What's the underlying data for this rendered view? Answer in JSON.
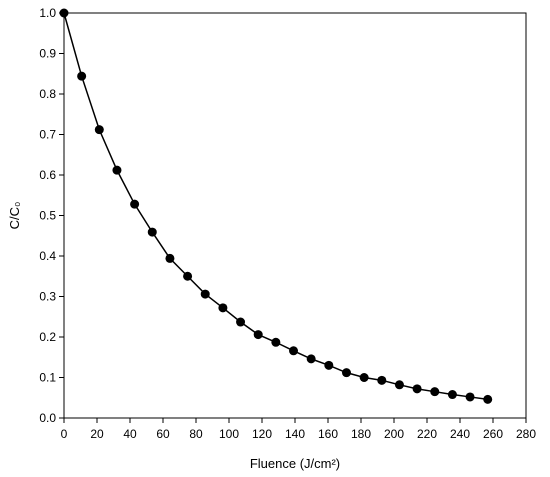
{
  "chart_data": {
    "type": "line",
    "xlabel": "Fluence (J/cm²)",
    "ylabel": "C/C₀",
    "xlim": [
      0,
      280
    ],
    "ylim": [
      0,
      1.0
    ],
    "x_ticks": [
      "0",
      "20",
      "40",
      "60",
      "80",
      "100",
      "120",
      "140",
      "160",
      "180",
      "200",
      "220",
      "240",
      "260",
      "280"
    ],
    "y_ticks": [
      "0.0",
      "0.1",
      "0.2",
      "0.3",
      "0.4",
      "0.5",
      "0.6",
      "0.7",
      "0.8",
      "0.9",
      "1.0"
    ],
    "grid": false,
    "legend": "none",
    "series": [
      {
        "color": "#000000",
        "marker": "circle-filled",
        "points": [
          [
            0,
            1.0
          ],
          [
            10.7,
            0.844
          ],
          [
            21.4,
            0.712
          ],
          [
            32.1,
            0.612
          ],
          [
            42.8,
            0.528
          ],
          [
            53.5,
            0.459
          ],
          [
            64.2,
            0.394
          ],
          [
            74.9,
            0.35
          ],
          [
            85.6,
            0.306
          ],
          [
            96.3,
            0.272
          ],
          [
            107,
            0.237
          ],
          [
            117.7,
            0.206
          ],
          [
            128.4,
            0.187
          ],
          [
            139.1,
            0.166
          ],
          [
            149.8,
            0.146
          ],
          [
            160.5,
            0.13
          ],
          [
            171.2,
            0.112
          ],
          [
            181.9,
            0.1
          ],
          [
            192.6,
            0.093
          ],
          [
            203.3,
            0.082
          ],
          [
            214,
            0.072
          ],
          [
            224.7,
            0.065
          ],
          [
            235.4,
            0.058
          ],
          [
            246.1,
            0.052
          ],
          [
            256.8,
            0.046
          ]
        ]
      }
    ]
  }
}
